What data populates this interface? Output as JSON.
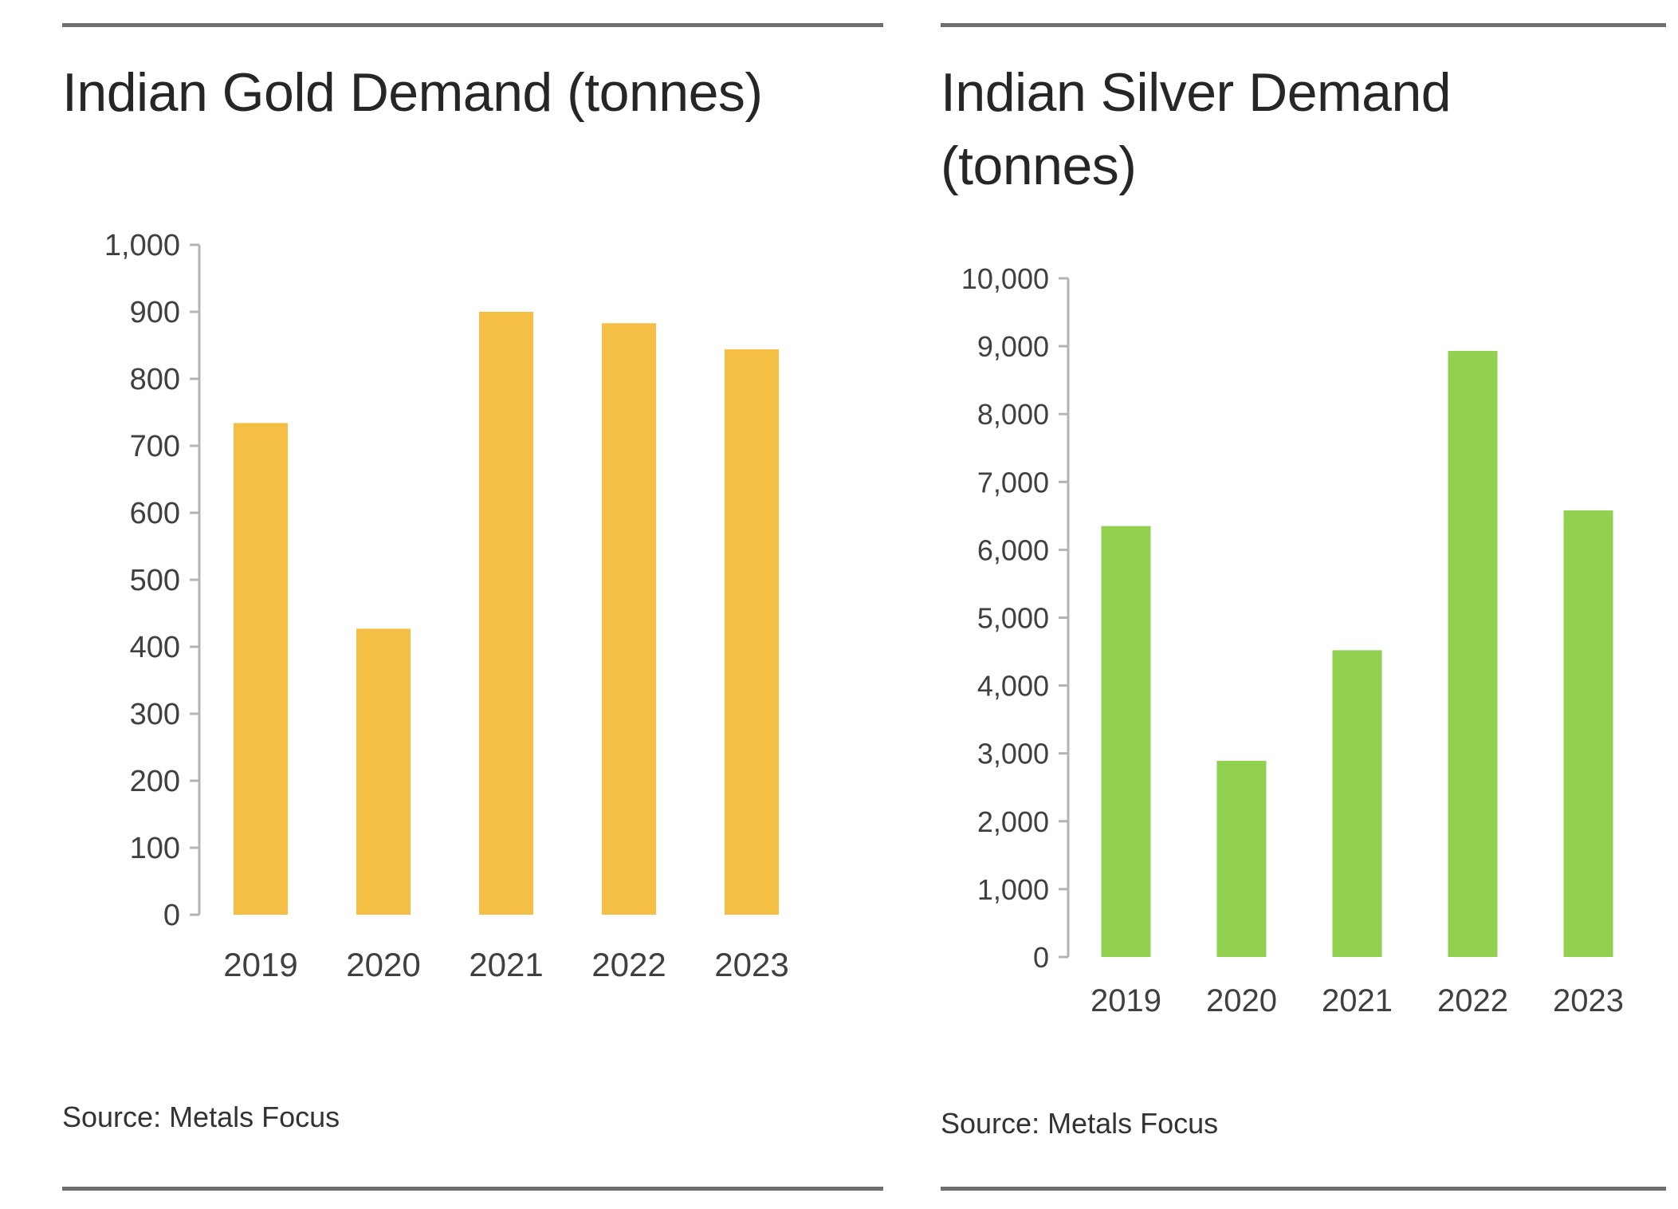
{
  "chart_data": [
    {
      "type": "bar",
      "title": "Indian Gold Demand (tonnes)",
      "categories": [
        "2019",
        "2020",
        "2021",
        "2022",
        "2023"
      ],
      "values": [
        734,
        427,
        900,
        883,
        844
      ],
      "ylim": [
        0,
        1000
      ],
      "yticks": [
        0,
        100,
        200,
        300,
        400,
        500,
        600,
        700,
        800,
        900,
        1000
      ],
      "ytick_labels": [
        "0",
        "100",
        "200",
        "300",
        "400",
        "500",
        "600",
        "700",
        "800",
        "900",
        "1,000"
      ],
      "xlabel": "",
      "ylabel": "",
      "grid": false,
      "legend": "none",
      "bar_color": "#F5BE45",
      "source": "Source: Metals Focus"
    },
    {
      "type": "bar",
      "title": "Indian Silver Demand (tonnes)",
      "categories": [
        "2019",
        "2020",
        "2021",
        "2022",
        "2023"
      ],
      "values": [
        6350,
        2890,
        4520,
        8930,
        6580
      ],
      "ylim": [
        0,
        10000
      ],
      "yticks": [
        0,
        1000,
        2000,
        3000,
        4000,
        5000,
        6000,
        7000,
        8000,
        9000,
        10000
      ],
      "ytick_labels": [
        "0",
        "1,000",
        "2,000",
        "3,000",
        "4,000",
        "5,000",
        "6,000",
        "7,000",
        "8,000",
        "9,000",
        "10,000"
      ],
      "xlabel": "",
      "ylabel": "",
      "grid": false,
      "legend": "none",
      "bar_color": "#92D050",
      "source": "Source: Metals Focus"
    }
  ]
}
